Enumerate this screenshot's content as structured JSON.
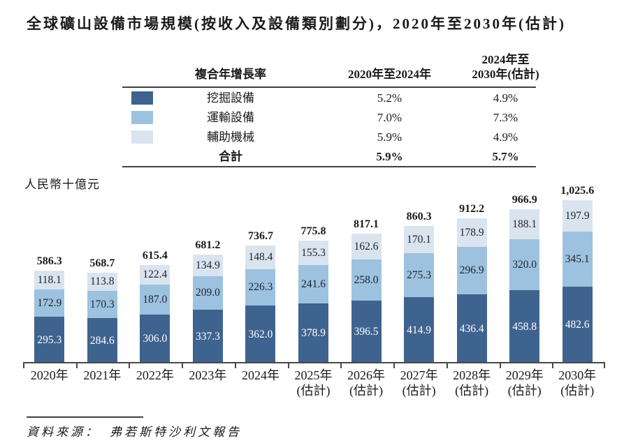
{
  "title": "全球礦山設備市場規模(按收入及設備類別劃分)，2020年至2030年(估計)",
  "unit_label": "人民幣十億元",
  "colors": {
    "excavation": "#3f638f",
    "transport": "#9dc2e0",
    "auxiliary": "#dae4ef",
    "axis": "#48484a"
  },
  "cagr_table": {
    "header": {
      "label": "複合年增長率",
      "col1": "2020年至2024年",
      "col2_line1": "2024年至",
      "col2_line2": "2030年(估計)"
    },
    "rows": [
      {
        "swatch": "excavation",
        "label": "挖掘設備",
        "c1": "5.2%",
        "c2": "4.9%"
      },
      {
        "swatch": "transport",
        "label": "運輸設備",
        "c1": "7.0%",
        "c2": "7.3%"
      },
      {
        "swatch": "auxiliary",
        "label": "輔助機械",
        "c1": "5.9%",
        "c2": "4.9%"
      }
    ],
    "total_row": {
      "label": "合計",
      "c1": "5.9%",
      "c2": "5.7%"
    }
  },
  "chart_data": {
    "type": "bar",
    "stacked": true,
    "title": "全球礦山設備市場規模(按收入及設備類別劃分)，2020年至2030年(估計)",
    "ylabel": "人民幣十億元",
    "ylim": [
      0,
      1100
    ],
    "grid": false,
    "legend_position": "table-top",
    "categories": [
      "2020年",
      "2021年",
      "2022年",
      "2023年",
      "2024年",
      "2025年\n(估計)",
      "2026年\n(估計)",
      "2027年\n(估計)",
      "2028年\n(估計)",
      "2029年\n(估計)",
      "2030年\n(估計)"
    ],
    "series": [
      {
        "name": "挖掘設備",
        "key": "excavation",
        "values": [
          295.3,
          284.6,
          306.0,
          337.3,
          362.0,
          378.9,
          396.5,
          414.9,
          436.4,
          458.8,
          482.6
        ]
      },
      {
        "name": "運輸設備",
        "key": "transport",
        "values": [
          172.9,
          170.3,
          187.0,
          209.0,
          226.3,
          241.6,
          258.0,
          275.3,
          296.9,
          320.0,
          345.1
        ]
      },
      {
        "name": "輔助機械",
        "key": "auxiliary",
        "values": [
          118.1,
          113.8,
          122.4,
          134.9,
          148.4,
          155.3,
          162.6,
          170.1,
          178.9,
          188.1,
          197.9
        ]
      }
    ],
    "totals": [
      "586.3",
      "568.7",
      "615.4",
      "681.2",
      "736.7",
      "775.8",
      "817.1",
      "860.3",
      "912.2",
      "966.9",
      "1,025.6"
    ]
  },
  "source": {
    "prefix": "資料來源：",
    "text": "弗若斯特沙利文報告"
  }
}
